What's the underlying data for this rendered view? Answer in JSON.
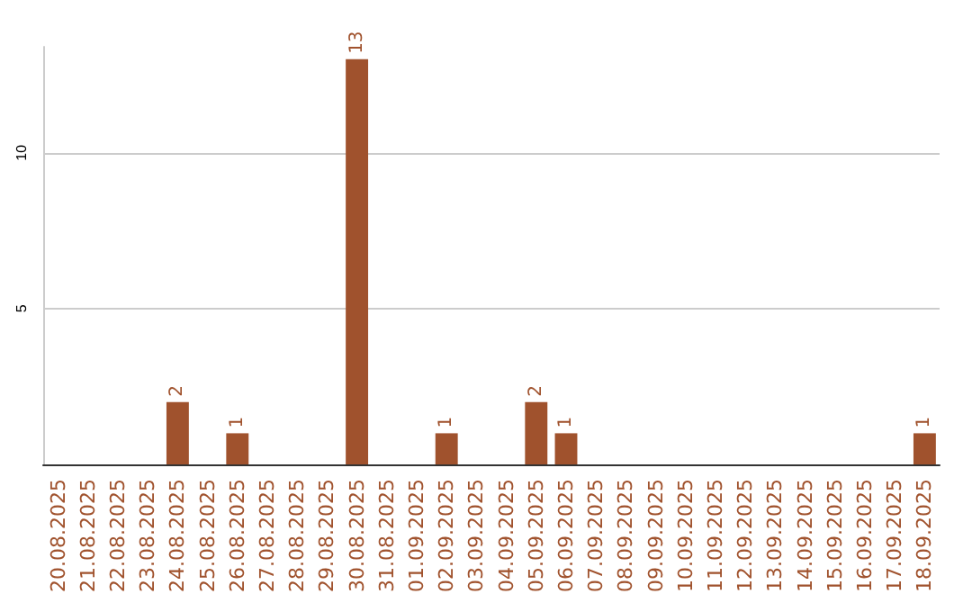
{
  "chart_data": {
    "type": "bar",
    "categories": [
      "20.08.2025",
      "21.08.2025",
      "22.08.2025",
      "23.08.2025",
      "24.08.2025",
      "25.08.2025",
      "26.08.2025",
      "27.08.2025",
      "28.08.2025",
      "29.08.2025",
      "30.08.2025",
      "31.08.2025",
      "01.09.2025",
      "02.09.2025",
      "03.09.2025",
      "04.09.2025",
      "05.09.2025",
      "06.09.2025",
      "07.09.2025",
      "08.09.2025",
      "09.09.2025",
      "10.09.2025",
      "11.09.2025",
      "12.09.2025",
      "13.09.2025",
      "14.09.2025",
      "15.09.2025",
      "16.09.2025",
      "17.09.2025",
      "18.09.2025"
    ],
    "values": [
      0,
      0,
      0,
      0,
      2,
      0,
      1,
      0,
      0,
      0,
      13,
      0,
      0,
      1,
      0,
      0,
      2,
      1,
      0,
      0,
      0,
      0,
      0,
      0,
      0,
      0,
      0,
      0,
      0,
      1
    ],
    "value_labels": [
      null,
      null,
      null,
      null,
      "2",
      null,
      "1",
      null,
      null,
      null,
      "13",
      null,
      null,
      "1",
      null,
      null,
      "2",
      "1",
      null,
      null,
      null,
      null,
      null,
      null,
      null,
      null,
      null,
      null,
      null,
      "1"
    ],
    "color": "#a0522d",
    "ylim": [
      0,
      13.4
    ],
    "yticks": [
      5,
      10
    ],
    "grid": "y"
  }
}
